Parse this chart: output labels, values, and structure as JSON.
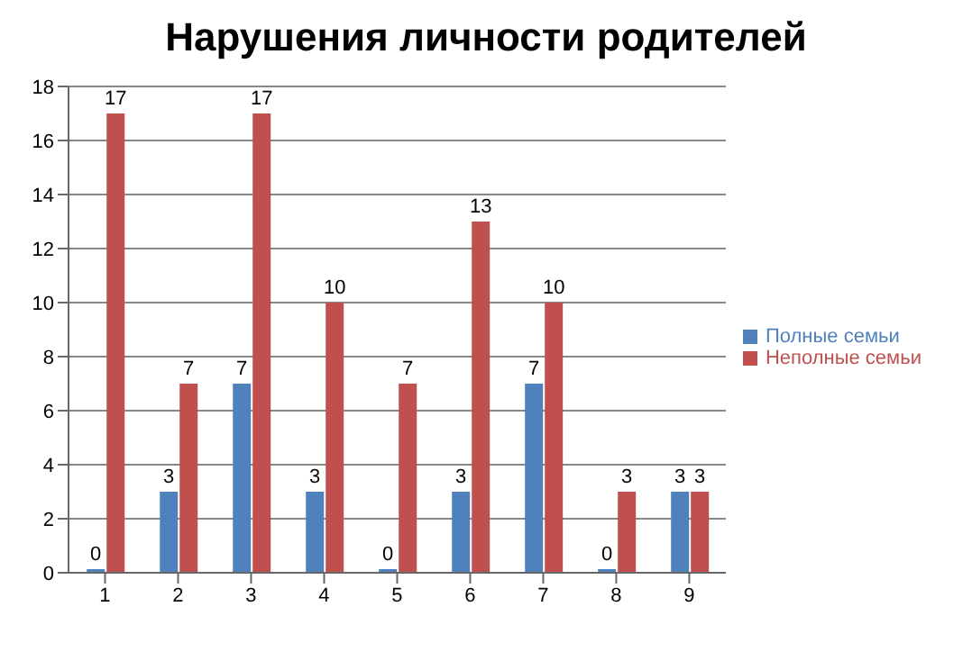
{
  "chart_data": {
    "type": "bar",
    "title": "Нарушения личности родителей",
    "categories": [
      "1",
      "2",
      "3",
      "4",
      "5",
      "6",
      "7",
      "8",
      "9"
    ],
    "series": [
      {
        "name": "Полные семьи",
        "color": "#4f81bd",
        "values": [
          0,
          3,
          7,
          3,
          0,
          3,
          7,
          0,
          3
        ]
      },
      {
        "name": "Неполные семьи",
        "color": "#c0504d",
        "values": [
          17,
          7,
          17,
          10,
          7,
          13,
          10,
          3,
          3
        ]
      }
    ],
    "ylim": [
      0,
      18
    ],
    "yticks": [
      0,
      2,
      4,
      6,
      8,
      10,
      12,
      14,
      16,
      18
    ],
    "grid": "y",
    "legend": "right",
    "data_labels": true
  }
}
